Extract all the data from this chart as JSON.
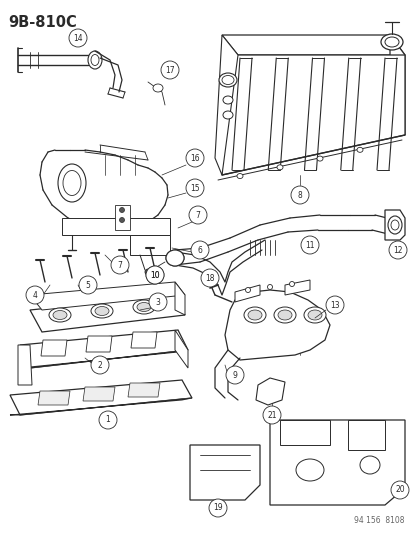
{
  "title": "9B–810C",
  "title_display": "9B-810C",
  "background_color": "#ffffff",
  "line_color": "#2a2a2a",
  "label_color": "#000000",
  "fig_width": 4.14,
  "fig_height": 5.33,
  "dpi": 100,
  "watermark": "94 156  8108",
  "circle_r": 0.018,
  "label_fontsize": 6.0,
  "title_fontsize": 10.5
}
